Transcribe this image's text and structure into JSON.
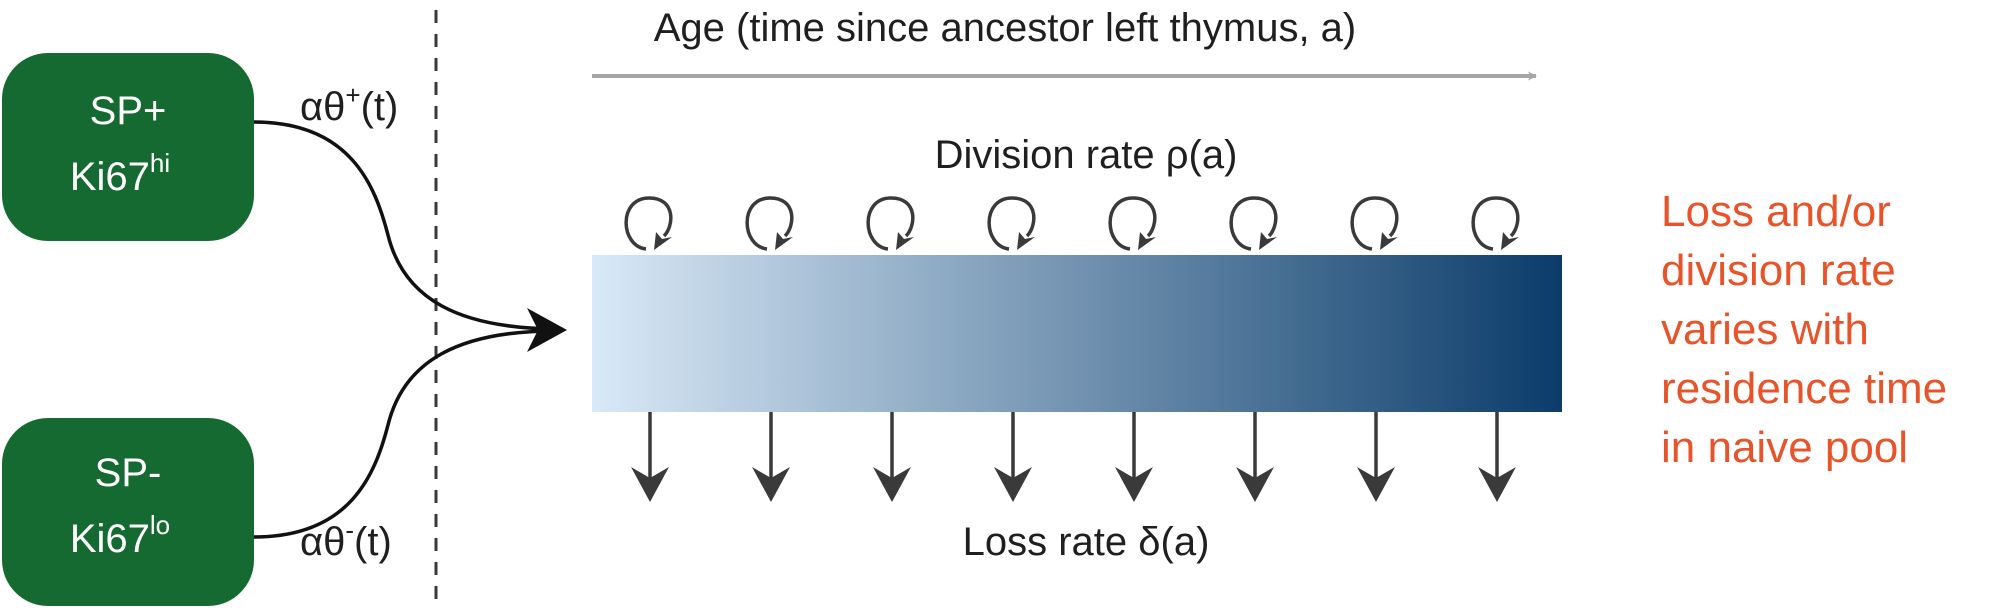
{
  "colors": {
    "compartment_fill": "#146a30",
    "gradient_start": "#d9e9f7",
    "gradient_end": "#0b3c6a",
    "note": "#e8542a",
    "age_arrow": "#a6a6a6",
    "arrows": "#3a3a3a"
  },
  "compartments": [
    {
      "line1": "SP+",
      "line2": "Ki67",
      "line2_sup": "hi"
    },
    {
      "line1": "SP-",
      "line2": "Ki67",
      "line2_sup": "lo"
    }
  ],
  "influx": [
    {
      "prefix": "αθ",
      "sup": "+",
      "suffix": "(t)"
    },
    {
      "prefix": "αθ",
      "sup": "-",
      "suffix": "(t)"
    }
  ],
  "age_axis_label": "Age (time since ancestor left thymus, a)",
  "division_label": "Division rate ρ(a)",
  "loss_label": "Loss rate δ(a)",
  "arrow_count": 8,
  "note_lines": [
    "Loss and/or",
    "division rate",
    "varies with",
    "residence time",
    "in naive pool"
  ]
}
